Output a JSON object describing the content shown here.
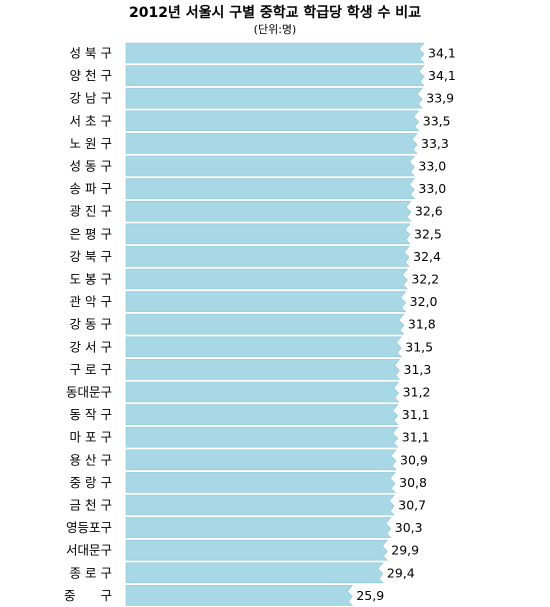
{
  "chart_data": {
    "type": "bar",
    "orientation": "horizontal",
    "title": "2012년 서울시 구별 중학교 학급당 학생 수 비교",
    "unit": "(단위:명)",
    "categories": [
      "성 북 구",
      "양 천 구",
      "강 남 구",
      "서 초 구",
      "노 원 구",
      "성 동 구",
      "송 파 구",
      "광 진 구",
      "은 평 구",
      "강 북 구",
      "도 봉 구",
      "관 악 구",
      "강 동 구",
      "강 서 구",
      "구 로 구",
      "동대문구",
      "동 작 구",
      "마 포 구",
      "용 산 구",
      "중 랑 구",
      "금 천 구",
      "영등포구",
      "서대문구",
      "종 로 구",
      "중　　구"
    ],
    "values": [
      34.1,
      34.1,
      33.9,
      33.5,
      33.3,
      33.0,
      33.0,
      32.6,
      32.5,
      32.4,
      32.2,
      32.0,
      31.8,
      31.5,
      31.3,
      31.2,
      31.1,
      31.1,
      30.9,
      30.8,
      30.7,
      30.3,
      29.9,
      29.4,
      25.9
    ],
    "labels": [
      "34,1",
      "34,1",
      "33,9",
      "33,5",
      "33,3",
      "33,0",
      "33,0",
      "32,6",
      "32,5",
      "32,4",
      "32,2",
      "32,0",
      "31,8",
      "31,5",
      "31,3",
      "31,2",
      "31,1",
      "31,1",
      "30,9",
      "30,8",
      "30,7",
      "30,3",
      "29,9",
      "29,4",
      "25,9"
    ],
    "colors": {
      "bar": "#a8d8e6",
      "bar_edge": "#8cc4d6",
      "background": "#ffffff"
    },
    "grid": false,
    "legend": "none"
  }
}
